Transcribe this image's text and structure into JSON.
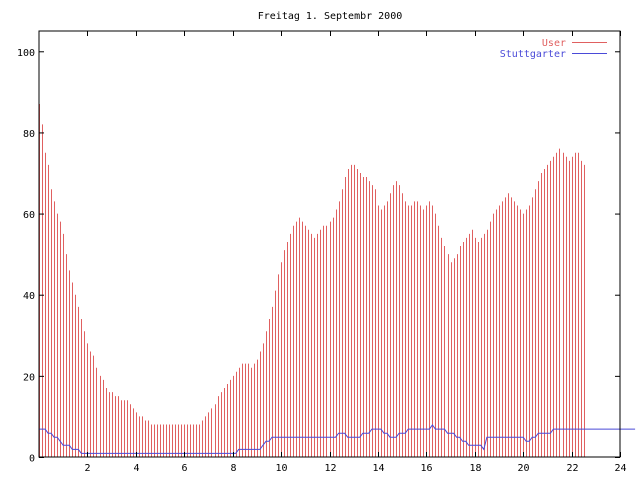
{
  "chart_data": {
    "type": "line",
    "title": "Freitag 1. Septembr 2000",
    "xlabel": "",
    "ylabel": "",
    "xlim": [
      0,
      24
    ],
    "ylim": [
      0,
      105
    ],
    "x_ticks": [
      2,
      4,
      6,
      8,
      10,
      12,
      14,
      16,
      18,
      20,
      22,
      24
    ],
    "x_tick_labels": [
      "2",
      "4",
      "6",
      "8",
      "10",
      "12",
      "14",
      "16",
      "18",
      "20",
      "22",
      "24"
    ],
    "y_ticks": [
      0,
      20,
      40,
      60,
      80,
      100
    ],
    "y_tick_labels": [
      "0",
      "20",
      "40",
      "60",
      "80",
      "100"
    ],
    "grid": false,
    "legend_position": "top-right",
    "series": [
      {
        "name": "User",
        "style": "impulses",
        "color": "#e06060",
        "x_step_hours": 0.125,
        "values": [
          87,
          82,
          75,
          72,
          66,
          63,
          60,
          58,
          55,
          50,
          46,
          43,
          40,
          37,
          34,
          31,
          28,
          26,
          25,
          22,
          20,
          19,
          17,
          16,
          16,
          15,
          15,
          14,
          14,
          14,
          13,
          12,
          11,
          10,
          10,
          9,
          9,
          8,
          8,
          8,
          8,
          8,
          8,
          8,
          8,
          8,
          8,
          8,
          8,
          8,
          8,
          8,
          8,
          8,
          9,
          10,
          11,
          12,
          13,
          15,
          16,
          17,
          18,
          19,
          20,
          21,
          22,
          23,
          23,
          23,
          22,
          23,
          24,
          26,
          28,
          31,
          34,
          37,
          41,
          45,
          48,
          51,
          53,
          55,
          57,
          58,
          59,
          58,
          57,
          56,
          55,
          54,
          55,
          56,
          57,
          57,
          58,
          59,
          61,
          63,
          66,
          69,
          71,
          72,
          72,
          71,
          70,
          69,
          69,
          68,
          67,
          66,
          62,
          61,
          62,
          63,
          65,
          67,
          68,
          67,
          65,
          63,
          62,
          62,
          63,
          63,
          62,
          61,
          62,
          63,
          62,
          60,
          57,
          54,
          52,
          50,
          48,
          49,
          50,
          52,
          53,
          54,
          55,
          56,
          54,
          53,
          54,
          55,
          56,
          58,
          60,
          61,
          62,
          63,
          64,
          65,
          64,
          63,
          62,
          61,
          60,
          61,
          62,
          64,
          66,
          68,
          70,
          71,
          72,
          73,
          74,
          75,
          76,
          75,
          74,
          73,
          74,
          75,
          75,
          73,
          72
        ]
      },
      {
        "name": "Stuttgarter",
        "style": "lines",
        "color": "#4a4ad8",
        "x_step_hours": 0.125,
        "values": [
          7,
          7,
          7,
          6,
          6,
          5,
          5,
          4,
          3,
          3,
          3,
          2,
          2,
          2,
          1,
          1,
          1,
          1,
          1,
          1,
          1,
          1,
          1,
          1,
          1,
          1,
          1,
          1,
          1,
          1,
          1,
          1,
          1,
          1,
          1,
          1,
          1,
          1,
          1,
          1,
          1,
          1,
          1,
          1,
          1,
          1,
          1,
          1,
          1,
          1,
          1,
          1,
          1,
          1,
          1,
          1,
          1,
          1,
          1,
          1,
          1,
          1,
          1,
          1,
          1,
          1,
          2,
          2,
          2,
          2,
          2,
          2,
          2,
          2,
          3,
          4,
          4,
          5,
          5,
          5,
          5,
          5,
          5,
          5,
          5,
          5,
          5,
          5,
          5,
          5,
          5,
          5,
          5,
          5,
          5,
          5,
          5,
          5,
          5,
          6,
          6,
          6,
          5,
          5,
          5,
          5,
          5,
          6,
          6,
          6,
          7,
          7,
          7,
          7,
          6,
          6,
          5,
          5,
          5,
          6,
          6,
          6,
          7,
          7,
          7,
          7,
          7,
          7,
          7,
          7,
          8,
          7,
          7,
          7,
          7,
          6,
          6,
          6,
          5,
          5,
          4,
          4,
          3,
          3,
          3,
          3,
          3,
          2,
          5,
          5,
          5,
          5,
          5,
          5,
          5,
          5,
          5,
          5,
          5,
          5,
          5,
          4,
          4,
          5,
          5,
          6,
          6,
          6,
          6,
          6,
          7,
          7,
          7,
          7,
          7,
          7,
          7,
          7,
          7,
          7,
          7,
          7,
          7,
          7,
          7,
          7,
          7,
          7,
          7,
          7,
          7,
          7,
          7,
          7,
          7,
          7,
          7,
          7
        ]
      }
    ]
  }
}
